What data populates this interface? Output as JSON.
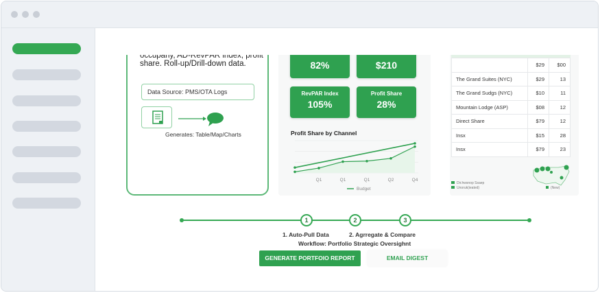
{
  "window": {
    "dots": 3
  },
  "sidebar": {
    "items": [
      {
        "active": true
      },
      {
        "active": false
      },
      {
        "active": false
      },
      {
        "active": false
      },
      {
        "active": false
      },
      {
        "active": false
      },
      {
        "active": false
      }
    ]
  },
  "card": {
    "desc_line1": "occupany, AD-RevPAR index, profit",
    "desc_line2": "share. Roll-up/Drill-down data.",
    "data_source": "Data Source: PMS/OTA Logs",
    "generates": "Generates: Table/Map/Charts"
  },
  "kpis": [
    {
      "label": "",
      "value": "82%"
    },
    {
      "label": "",
      "value": "$210"
    },
    {
      "label": "RevPAR Index",
      "value": "105%"
    },
    {
      "label": "Profit Share",
      "value": "28%"
    }
  ],
  "colors": {
    "accent": "#34a853",
    "kpi": "#2fa150"
  },
  "chart_data": {
    "type": "line",
    "title": "Profit Share by Channel",
    "categories": [
      "",
      "Q1",
      "Q1",
      "Q1",
      "Q2",
      "Q4"
    ],
    "series": [
      {
        "values": [
          10,
          null,
          null,
          null,
          null,
          55
        ]
      },
      {
        "name": "Budget",
        "values": [
          2,
          9,
          21,
          22,
          27,
          49
        ]
      }
    ],
    "legend": "bottom",
    "grid": true
  },
  "table": {
    "header": [
      "",
      "$29",
      "$00"
    ],
    "rows": [
      [
        "The Grand Suites (NYC)",
        "$29",
        "13"
      ],
      [
        "The Grand Sudgs (NYC)",
        "$10",
        "11"
      ],
      [
        "Mountain Lodge (ASP)",
        "$08",
        "12"
      ],
      [
        "Direct Share",
        "$79",
        "12"
      ],
      [
        "Insx",
        "$15",
        "28"
      ],
      [
        "Insx",
        "$79",
        "23"
      ]
    ]
  },
  "map": {
    "legend": [
      "Dir.hwsnop Ssaep",
      "Unoruk(ieated)",
      "(New)"
    ]
  },
  "workflow": {
    "steps": [
      "1",
      "2",
      "3"
    ],
    "step_labels": [
      "1. Auto-Pull Data",
      "2. Agrregate & Compare"
    ],
    "title": "Workflow: Portfolio Strategic Oversighnt"
  },
  "actions": {
    "generate": "GENERATE PORTFOIO REPORT",
    "email": "EMAIL DIGEST"
  }
}
